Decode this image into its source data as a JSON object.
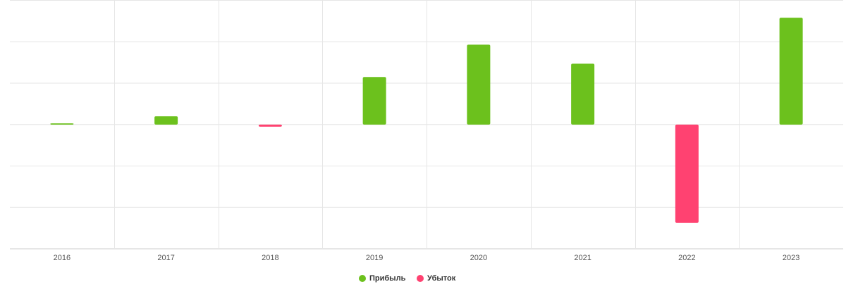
{
  "chart_data": {
    "type": "bar",
    "categories": [
      "2016",
      "2017",
      "2018",
      "2019",
      "2020",
      "2021",
      "2022",
      "2023"
    ],
    "series": [
      {
        "name": "Прибыль",
        "color": "#6cc11d",
        "values": [
          0.03,
          0.2,
          null,
          1.15,
          1.93,
          1.47,
          null,
          2.58
        ]
      },
      {
        "name": "Убыток",
        "color": "#ff4271",
        "values": [
          null,
          null,
          -0.05,
          null,
          null,
          null,
          -2.37,
          null
        ]
      }
    ],
    "ylim": [
      -3,
      3
    ],
    "yticks": [
      -3,
      -2,
      -1,
      0,
      1,
      2,
      3
    ],
    "grid": true
  }
}
